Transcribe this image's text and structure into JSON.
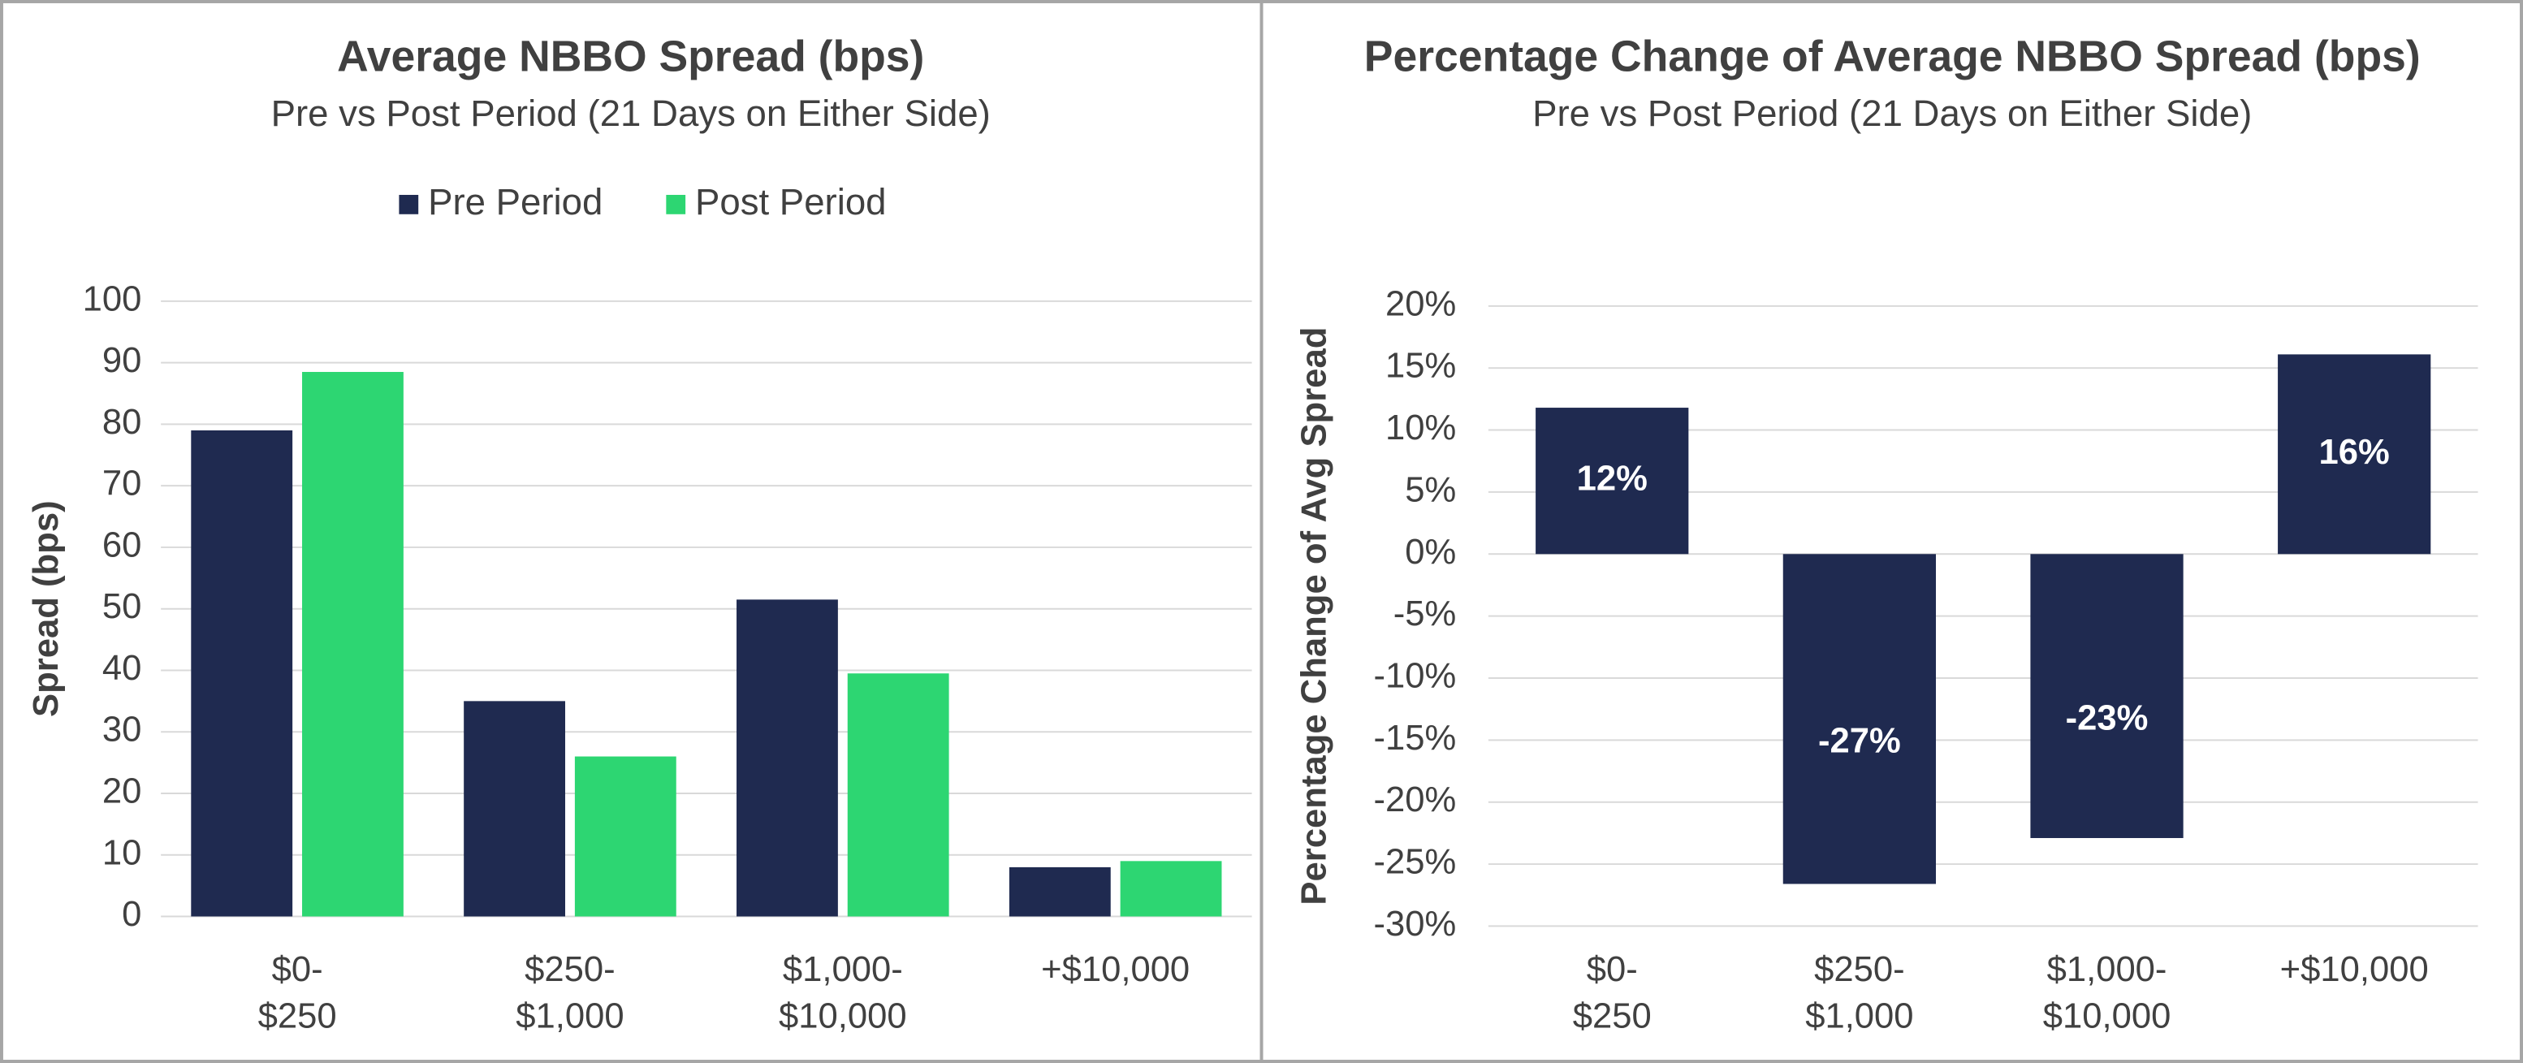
{
  "chart_data": [
    {
      "type": "bar",
      "title": "Average NBBO Spread (bps)",
      "subtitle": "Pre vs Post Period (21 Days on Either Side)",
      "y_label": "Spread (bps)",
      "categories": [
        "$0-$250",
        "$250-$1,000",
        "$1,000-$10,000",
        "+$10,000"
      ],
      "series": [
        {
          "name": "Pre Period",
          "color": "#1f2a50",
          "values": [
            79,
            35,
            51.5,
            8
          ]
        },
        {
          "name": "Post Period",
          "color": "#2dd672",
          "values": [
            88.5,
            26,
            39.5,
            9
          ]
        }
      ],
      "ylim": [
        0,
        100
      ],
      "yticks": [
        0,
        10,
        20,
        30,
        40,
        50,
        60,
        70,
        80,
        90,
        100
      ],
      "grid": true,
      "legend": "top"
    },
    {
      "type": "bar",
      "title": "Percentage Change of Average NBBO Spread (bps)",
      "subtitle": "Pre vs Post Period (21 Days on Either Side)",
      "y_label": "Percentage Change of Avg Spread",
      "categories": [
        "$0-$250",
        "$250-$1,000",
        "$1,000-$10,000",
        "+$10,000"
      ],
      "values": [
        11.8,
        -26.6,
        -22.9,
        16.1
      ],
      "value_labels": [
        "12%",
        "-27%",
        "-23%",
        "16%"
      ],
      "color": "#1f2a50",
      "ylim": [
        -30,
        20
      ],
      "yticks": [
        {
          "value": -30,
          "label": "-30%"
        },
        {
          "value": -25,
          "label": "-25%"
        },
        {
          "value": -20,
          "label": "-20%"
        },
        {
          "value": -15,
          "label": "-15%"
        },
        {
          "value": -10,
          "label": "-10%"
        },
        {
          "value": -5,
          "label": "-5%"
        },
        {
          "value": 0,
          "label": "0%"
        },
        {
          "value": 5,
          "label": "5%"
        },
        {
          "value": 10,
          "label": "10%"
        },
        {
          "value": 15,
          "label": "15%"
        },
        {
          "value": 20,
          "label": "20%"
        }
      ],
      "grid": true
    }
  ]
}
